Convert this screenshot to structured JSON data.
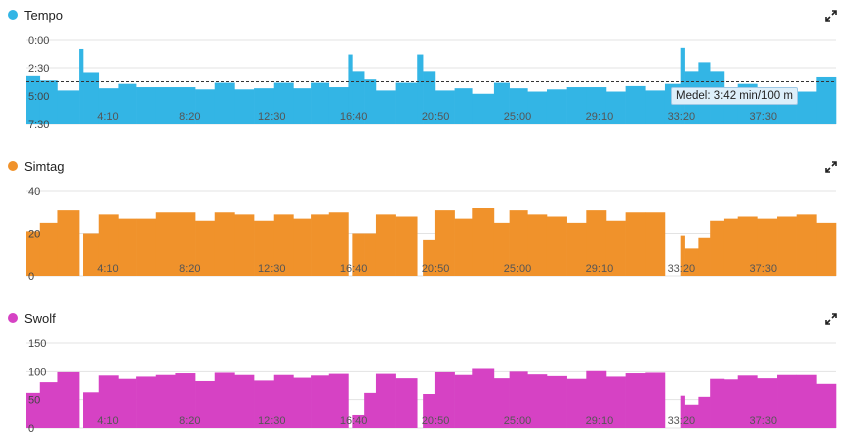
{
  "chart_data": [
    {
      "id": "tempo",
      "type": "bar",
      "title": "Tempo",
      "color": "#33b5e5",
      "y_inverted": true,
      "ylim": [
        0,
        7.5
      ],
      "y_ticks": [
        {
          "value": 0,
          "label": "0:00"
        },
        {
          "value": 2.5,
          "label": "2:30"
        },
        {
          "value": 5,
          "label": "5:00"
        },
        {
          "value": 7.5,
          "label": "7:30"
        }
      ],
      "x_ticks": [
        "4:10",
        "8:20",
        "12:30",
        "16:40",
        "20:50",
        "25:00",
        "29:10",
        "33:20",
        "37:30"
      ],
      "xlim": [
        0,
        41.2
      ],
      "x_tick_values": [
        4.1667,
        8.3333,
        12.5,
        16.6667,
        20.8333,
        25.0,
        29.1667,
        33.3333,
        37.5
      ],
      "reference_line": {
        "value": 3.7,
        "label": "Medel: 3:42 min/100 m"
      },
      "bars": [
        [
          0,
          0.7,
          3.2
        ],
        [
          0.7,
          1.6,
          3.6
        ],
        [
          1.6,
          2.7,
          4.5
        ],
        [
          2.7,
          2.9,
          0.8
        ],
        [
          2.9,
          3.7,
          2.9
        ],
        [
          3.7,
          4.7,
          4.3
        ],
        [
          4.7,
          5.6,
          3.9
        ],
        [
          5.6,
          6.6,
          4.2
        ],
        [
          6.6,
          8.6,
          4.2
        ],
        [
          8.6,
          9.6,
          4.4
        ],
        [
          9.6,
          10.6,
          3.8
        ],
        [
          10.6,
          11.6,
          4.4
        ],
        [
          11.6,
          12.6,
          4.3
        ],
        [
          12.6,
          13.6,
          3.8
        ],
        [
          13.6,
          14.5,
          4.3
        ],
        [
          14.5,
          15.4,
          3.8
        ],
        [
          15.4,
          16.4,
          4.2
        ],
        [
          16.4,
          16.6,
          1.3
        ],
        [
          16.6,
          17.2,
          2.8
        ],
        [
          17.2,
          17.8,
          3.5
        ],
        [
          17.8,
          18.8,
          4.5
        ],
        [
          18.8,
          19.9,
          3.8
        ],
        [
          19.9,
          20.2,
          1.3
        ],
        [
          20.2,
          20.8,
          2.8
        ],
        [
          20.8,
          21.8,
          4.5
        ],
        [
          21.8,
          22.7,
          4.3
        ],
        [
          22.7,
          23.8,
          4.8
        ],
        [
          23.8,
          24.6,
          3.8
        ],
        [
          24.6,
          25.5,
          4.3
        ],
        [
          25.5,
          26.5,
          4.6
        ],
        [
          26.5,
          27.5,
          4.4
        ],
        [
          27.5,
          28.5,
          4.2
        ],
        [
          28.5,
          29.5,
          4.2
        ],
        [
          29.5,
          30.5,
          4.6
        ],
        [
          30.5,
          31.5,
          4.1
        ],
        [
          31.5,
          32.5,
          4.5
        ],
        [
          32.5,
          33.3,
          3.9
        ],
        [
          33.3,
          33.5,
          0.7
        ],
        [
          33.5,
          34.2,
          2.8
        ],
        [
          34.2,
          34.8,
          2.0
        ],
        [
          34.8,
          35.5,
          2.8
        ],
        [
          35.5,
          36.2,
          4.5
        ],
        [
          36.2,
          37.2,
          3.9
        ],
        [
          37.2,
          38.2,
          4.6
        ],
        [
          38.2,
          39.2,
          4.6
        ],
        [
          39.2,
          40.2,
          4.6
        ],
        [
          40.2,
          41.2,
          3.3
        ]
      ]
    },
    {
      "id": "simtag",
      "type": "bar",
      "title": "Simtag",
      "color": "#f0922b",
      "y_inverted": false,
      "ylim": [
        0,
        40
      ],
      "y_ticks": [
        {
          "value": 0,
          "label": "0"
        },
        {
          "value": 20,
          "label": "20"
        },
        {
          "value": 40,
          "label": "40"
        }
      ],
      "x_ticks": [
        "4:10",
        "8:20",
        "12:30",
        "16:40",
        "20:50",
        "25:00",
        "29:10",
        "33:20",
        "37:30"
      ],
      "xlim": [
        0,
        41.2
      ],
      "x_tick_values": [
        4.1667,
        8.3333,
        12.5,
        16.6667,
        20.8333,
        25.0,
        29.1667,
        33.3333,
        37.5
      ],
      "bars": [
        [
          0,
          0.7,
          21
        ],
        [
          0.7,
          1.6,
          25
        ],
        [
          1.6,
          2.7,
          31
        ],
        [
          2.7,
          2.9,
          0
        ],
        [
          2.9,
          3.7,
          20
        ],
        [
          3.7,
          4.7,
          29
        ],
        [
          4.7,
          5.6,
          27
        ],
        [
          5.6,
          6.6,
          27
        ],
        [
          6.6,
          8.6,
          30
        ],
        [
          8.6,
          9.6,
          26
        ],
        [
          9.6,
          10.6,
          30
        ],
        [
          10.6,
          11.6,
          29
        ],
        [
          11.6,
          12.6,
          26
        ],
        [
          12.6,
          13.6,
          29
        ],
        [
          13.6,
          14.5,
          27
        ],
        [
          14.5,
          15.4,
          29
        ],
        [
          15.4,
          16.4,
          30
        ],
        [
          16.4,
          16.6,
          0
        ],
        [
          16.6,
          17.2,
          20
        ],
        [
          17.2,
          17.8,
          20
        ],
        [
          17.8,
          18.8,
          29
        ],
        [
          18.8,
          19.9,
          28
        ],
        [
          19.9,
          20.2,
          0
        ],
        [
          20.2,
          20.8,
          17
        ],
        [
          20.8,
          21.8,
          31
        ],
        [
          21.8,
          22.7,
          27
        ],
        [
          22.7,
          23.8,
          32
        ],
        [
          23.8,
          24.6,
          25
        ],
        [
          24.6,
          25.5,
          31
        ],
        [
          25.5,
          26.5,
          29
        ],
        [
          26.5,
          27.5,
          28
        ],
        [
          27.5,
          28.5,
          25
        ],
        [
          28.5,
          29.5,
          31
        ],
        [
          29.5,
          30.5,
          26
        ],
        [
          30.5,
          31.5,
          30
        ],
        [
          31.5,
          32.5,
          30
        ],
        [
          32.5,
          33.3,
          0
        ],
        [
          33.3,
          33.5,
          19
        ],
        [
          33.5,
          34.2,
          13
        ],
        [
          34.2,
          34.8,
          18
        ],
        [
          34.8,
          35.5,
          26
        ],
        [
          35.5,
          36.2,
          27
        ],
        [
          36.2,
          37.2,
          28
        ],
        [
          37.2,
          38.2,
          27
        ],
        [
          38.2,
          39.2,
          28
        ],
        [
          39.2,
          40.2,
          29
        ],
        [
          40.2,
          41.2,
          25
        ]
      ]
    },
    {
      "id": "swolf",
      "type": "bar",
      "title": "Swolf",
      "color": "#d642c4",
      "y_inverted": false,
      "ylim": [
        0,
        150
      ],
      "y_ticks": [
        {
          "value": 0,
          "label": "0"
        },
        {
          "value": 50,
          "label": "50"
        },
        {
          "value": 100,
          "label": "100"
        },
        {
          "value": 150,
          "label": "150"
        }
      ],
      "x_ticks": [
        "4:10",
        "8:20",
        "12:30",
        "16:40",
        "20:50",
        "25:00",
        "29:10",
        "33:20",
        "37:30"
      ],
      "xlim": [
        0,
        41.2
      ],
      "x_tick_values": [
        4.1667,
        8.3333,
        12.5,
        16.6667,
        20.8333,
        25.0,
        29.1667,
        33.3333,
        37.5
      ],
      "bars": [
        [
          0,
          0.7,
          62
        ],
        [
          0.7,
          1.6,
          81
        ],
        [
          1.6,
          2.7,
          99
        ],
        [
          2.7,
          2.9,
          0
        ],
        [
          2.9,
          3.7,
          63
        ],
        [
          3.7,
          4.7,
          93
        ],
        [
          4.7,
          5.6,
          87
        ],
        [
          5.6,
          6.6,
          91
        ],
        [
          6.6,
          7.6,
          94
        ],
        [
          7.6,
          8.6,
          97
        ],
        [
          8.6,
          9.6,
          83
        ],
        [
          9.6,
          10.6,
          98
        ],
        [
          10.6,
          11.6,
          94
        ],
        [
          11.6,
          12.6,
          84
        ],
        [
          12.6,
          13.6,
          94
        ],
        [
          13.6,
          14.5,
          89
        ],
        [
          14.5,
          15.4,
          93
        ],
        [
          15.4,
          16.4,
          96
        ],
        [
          16.4,
          16.6,
          0
        ],
        [
          16.6,
          17.2,
          23
        ],
        [
          17.2,
          17.8,
          62
        ],
        [
          17.8,
          18.8,
          96
        ],
        [
          18.8,
          19.9,
          88
        ],
        [
          19.9,
          20.2,
          0
        ],
        [
          20.2,
          20.8,
          60
        ],
        [
          20.8,
          21.8,
          99
        ],
        [
          21.8,
          22.7,
          94
        ],
        [
          22.7,
          23.8,
          105
        ],
        [
          23.8,
          24.6,
          88
        ],
        [
          24.6,
          25.5,
          100
        ],
        [
          25.5,
          26.5,
          95
        ],
        [
          26.5,
          27.5,
          92
        ],
        [
          27.5,
          28.5,
          87
        ],
        [
          28.5,
          29.5,
          101
        ],
        [
          29.5,
          30.5,
          91
        ],
        [
          30.5,
          31.5,
          97
        ],
        [
          31.5,
          32.5,
          98
        ],
        [
          32.5,
          33.3,
          0
        ],
        [
          33.3,
          33.5,
          57
        ],
        [
          33.5,
          34.2,
          41
        ],
        [
          34.2,
          34.8,
          55
        ],
        [
          34.8,
          35.5,
          87
        ],
        [
          35.5,
          36.2,
          86
        ],
        [
          36.2,
          37.2,
          93
        ],
        [
          37.2,
          38.2,
          88
        ],
        [
          38.2,
          39.2,
          94
        ],
        [
          39.2,
          40.2,
          94
        ],
        [
          40.2,
          41.2,
          78
        ]
      ]
    }
  ]
}
